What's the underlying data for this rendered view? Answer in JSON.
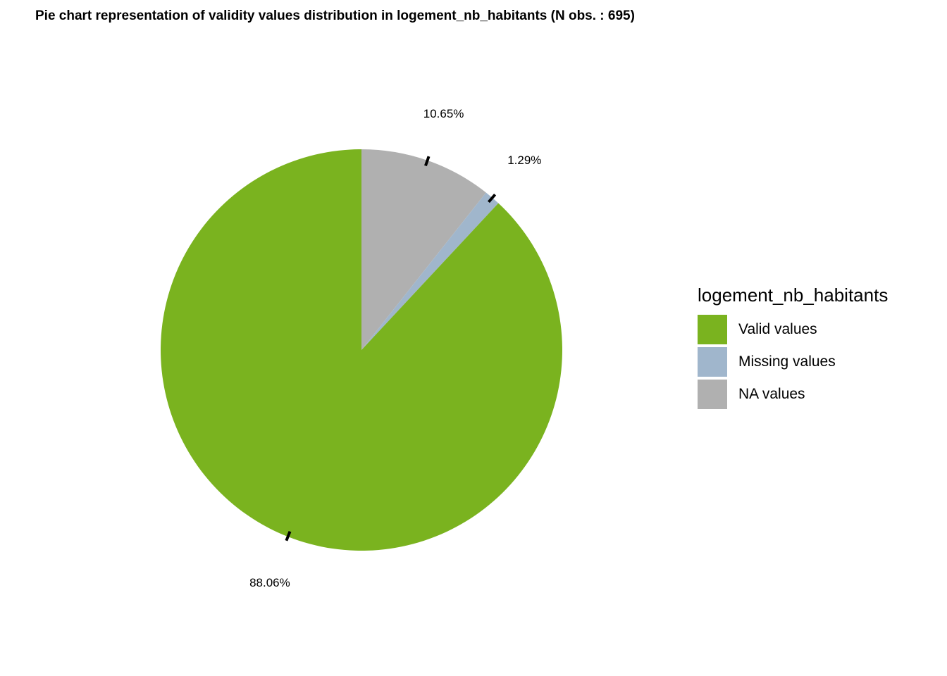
{
  "chart_data": {
    "type": "pie",
    "title": "Pie chart representation of validity values distribution in logement_nb_habitants (N obs. : 695)",
    "legend_title": "logement_nb_habitants",
    "legend_position": "right",
    "slices": [
      {
        "label": "Valid values",
        "value": 88.06,
        "value_label": "88.06%",
        "color": "#7ab31f"
      },
      {
        "label": "Missing values",
        "value": 1.29,
        "value_label": "1.29%",
        "color": "#a0b6cc"
      },
      {
        "label": "NA values",
        "value": 10.65,
        "value_label": "10.65%",
        "color": "#b0b0b0"
      }
    ],
    "draw_order": [
      "NA values",
      "Missing values",
      "Valid values"
    ],
    "direction": "clockwise",
    "start": "top"
  }
}
